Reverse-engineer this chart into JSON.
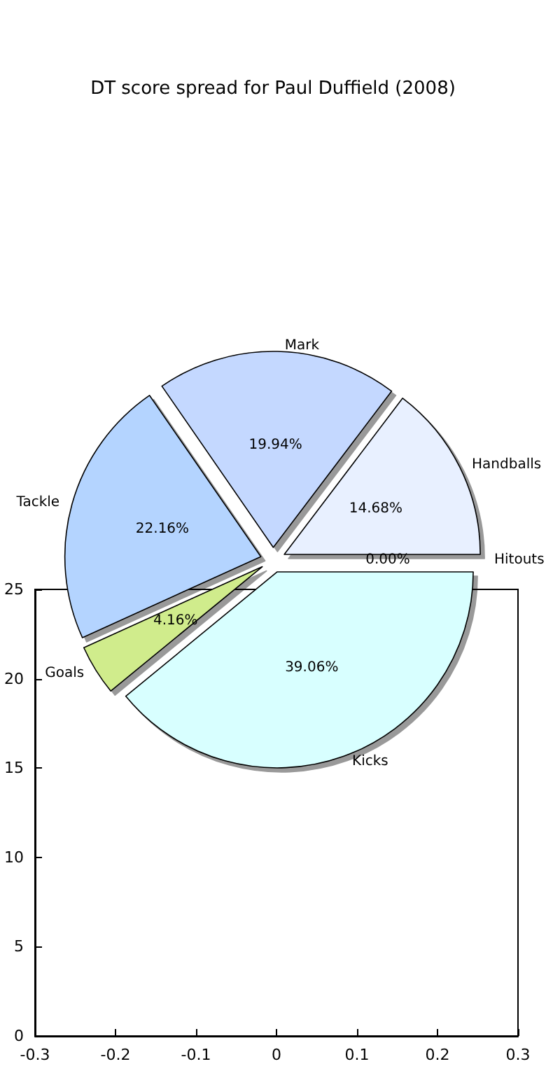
{
  "chart_data": [
    {
      "type": "scatter",
      "xlim": [
        -0.3,
        0.3
      ],
      "xticks": [
        -0.3,
        -0.2,
        -0.1,
        0.0,
        0.1,
        0.2,
        0.3
      ],
      "ylim": [
        0,
        25
      ],
      "yticks": [
        0,
        5,
        10,
        15,
        20,
        25
      ],
      "grid": false
    },
    {
      "type": "pie",
      "title": "DT score spread for Paul Duffield (2008)",
      "categories": [
        "Hitouts",
        "Handballs",
        "Mark",
        "Tackle",
        "Goals",
        "Kicks"
      ],
      "values": [
        0.0,
        14.68,
        19.94,
        22.16,
        4.16,
        39.06
      ],
      "value_labels": [
        "0.00%",
        "14.68%",
        "19.94%",
        "22.16%",
        "4.16%",
        "39.06%"
      ],
      "colors": [
        "#ffffff",
        "#e8f0ff",
        "#c4d8ff",
        "#b4d4ff",
        "#d0ec8c",
        "#d8ffff"
      ],
      "legend": false
    }
  ]
}
